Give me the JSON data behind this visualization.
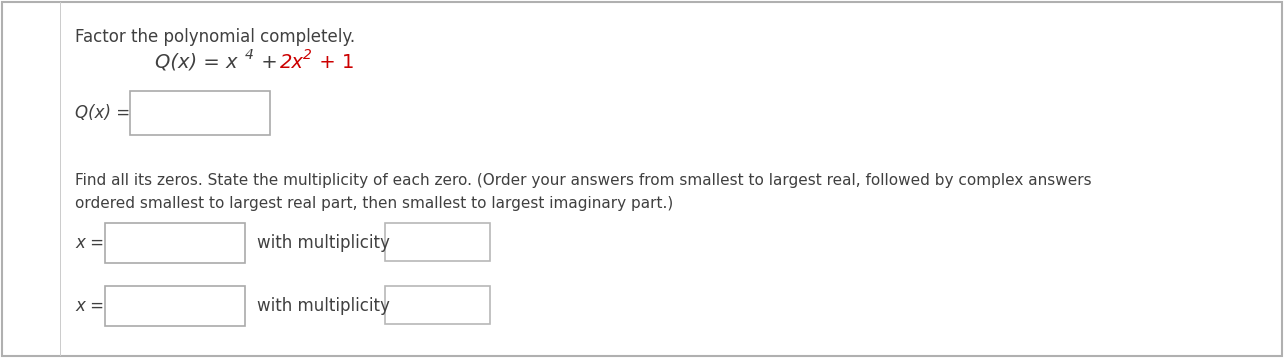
{
  "background_color": "#ffffff",
  "border_color": "#b0b0b0",
  "text_color": "#404040",
  "red_color": "#cc0000",
  "instruction_text": "Factor the polynomial completely.",
  "qx_label": "Q(x) =",
  "find_zeros_text": "Find all its zeros. State the multiplicity of each zero. (Order your answers from smallest to largest real, followed by complex answers\nordered smallest to largest real part, then smallest to largest imaginary part.)",
  "x_label": "x =",
  "with_multiplicity_label": "with multiplicity",
  "font_size_instruction": 12,
  "font_size_equation": 14,
  "font_size_body": 11,
  "font_size_label": 12
}
